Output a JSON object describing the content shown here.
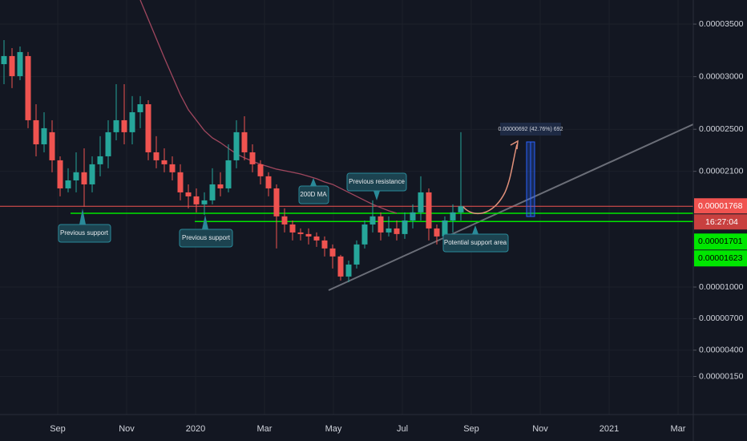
{
  "chart_data": {
    "type": "candlestick",
    "ylim": [
      -2.12e-06,
      3.729e-05
    ],
    "yticks": [
      {
        "value": 3.5e-05,
        "label": "0.00003500"
      },
      {
        "value": 3e-05,
        "label": "0.00003000"
      },
      {
        "value": 2.5e-05,
        "label": "0.00002500"
      },
      {
        "value": 2.1e-05,
        "label": "0.00002100"
      },
      {
        "value": 1e-05,
        "label": "0.00001000"
      },
      {
        "value": 7e-06,
        "label": "0.00000700"
      },
      {
        "value": 4e-06,
        "label": "0.00000400"
      },
      {
        "value": 1.5e-06,
        "label": "0.00000150"
      }
    ],
    "xticks": [
      "Sep",
      "Nov",
      "2020",
      "Mar",
      "May",
      "Jul",
      "Sep",
      "Nov",
      "2021",
      "Mar"
    ],
    "up_color": "#26a69a",
    "down_color": "#ef5350",
    "ma_color": "#a0475e",
    "level_color": "#00e600",
    "price_color": "#f05350",
    "ohlc": [
      [
        3.119e-05,
        3.348e-05,
        2.929e-05,
        3.196e-05
      ],
      [
        3.196e-05,
        3.272e-05,
        2.891e-05,
        3.005e-05
      ],
      [
        3.005e-05,
        3.287e-05,
        2.967e-05,
        3.234e-05
      ],
      [
        3.196e-05,
        3.234e-05,
        2.51e-05,
        2.586e-05
      ],
      [
        2.586e-05,
        2.738e-05,
        2.243e-05,
        2.357e-05
      ],
      [
        2.357e-05,
        2.662e-05,
        2.281e-05,
        2.51e-05
      ],
      [
        2.472e-05,
        2.586e-05,
        2.091e-05,
        2.205e-05
      ],
      [
        2.205e-05,
        2.243e-05,
        1.862e-05,
        1.938e-05
      ],
      [
        1.938e-05,
        2.129e-05,
        1.9e-05,
        2.014e-05
      ],
      [
        2.014e-05,
        2.281e-05,
        1.9e-05,
        2.091e-05
      ],
      [
        2.091e-05,
        2.319e-05,
        1.763e-05,
        1.976e-05
      ],
      [
        1.976e-05,
        2.243e-05,
        1.9e-05,
        2.167e-05
      ],
      [
        2.167e-05,
        2.434e-05,
        2.053e-05,
        2.243e-05
      ],
      [
        2.243e-05,
        2.586e-05,
        2.129e-05,
        2.472e-05
      ],
      [
        2.472e-05,
        2.929e-05,
        2.395e-05,
        2.586e-05
      ],
      [
        2.586e-05,
        2.929e-05,
        2.357e-05,
        2.472e-05
      ],
      [
        2.472e-05,
        2.815e-05,
        2.357e-05,
        2.662e-05
      ],
      [
        2.662e-05,
        2.815e-05,
        2.51e-05,
        2.738e-05
      ],
      [
        2.738e-05,
        2.776e-05,
        2.205e-05,
        2.281e-05
      ],
      [
        2.281e-05,
        2.434e-05,
        2.129e-05,
        2.205e-05
      ],
      [
        2.205e-05,
        2.319e-05,
        2.091e-05,
        2.167e-05
      ],
      [
        2.167e-05,
        2.243e-05,
        2.014e-05,
        2.091e-05
      ],
      [
        2.091e-05,
        2.167e-05,
        1.824e-05,
        1.9e-05
      ],
      [
        1.9e-05,
        1.976e-05,
        1.748e-05,
        1.862e-05
      ],
      [
        1.862e-05,
        1.938e-05,
        1.71e-05,
        1.786e-05
      ],
      [
        1.786e-05,
        1.9e-05,
        1.687e-05,
        1.824e-05
      ],
      [
        1.824e-05,
        2.129e-05,
        1.786e-05,
        1.976e-05
      ],
      [
        1.976e-05,
        2.091e-05,
        1.862e-05,
        1.938e-05
      ],
      [
        1.938e-05,
        2.357e-05,
        1.9e-05,
        2.205e-05
      ],
      [
        2.205e-05,
        2.586e-05,
        2.129e-05,
        2.472e-05
      ],
      [
        2.472e-05,
        2.624e-05,
        2.205e-05,
        2.281e-05
      ],
      [
        2.281e-05,
        2.357e-05,
        2.091e-05,
        2.167e-05
      ],
      [
        2.167e-05,
        2.205e-05,
        1.976e-05,
        2.053e-05
      ],
      [
        2.053e-05,
        2.091e-05,
        1.862e-05,
        1.938e-05
      ],
      [
        1.938e-05,
        1.976e-05,
        1.367e-05,
        1.672e-05
      ],
      [
        1.672e-05,
        1.748e-05,
        1.519e-05,
        1.595e-05
      ],
      [
        1.595e-05,
        1.633e-05,
        1.443e-05,
        1.519e-05
      ],
      [
        1.519e-05,
        1.557e-05,
        1.443e-05,
        1.504e-05
      ],
      [
        1.504e-05,
        1.557e-05,
        1.405e-05,
        1.481e-05
      ],
      [
        1.481e-05,
        1.519e-05,
        1.382e-05,
        1.443e-05
      ],
      [
        1.443e-05,
        1.481e-05,
        1.291e-05,
        1.367e-05
      ],
      [
        1.367e-05,
        1.405e-05,
        1.176e-05,
        1.291e-05
      ],
      [
        1.291e-05,
        1.306e-05,
        1.062e-05,
        1.1e-05
      ],
      [
        1.1e-05,
        1.252e-05,
        1.047e-05,
        1.214e-05
      ],
      [
        1.214e-05,
        1.443e-05,
        1.176e-05,
        1.405e-05
      ],
      [
        1.405e-05,
        1.633e-05,
        1.367e-05,
        1.595e-05
      ],
      [
        1.595e-05,
        1.824e-05,
        1.519e-05,
        1.672e-05
      ],
      [
        1.672e-05,
        1.71e-05,
        1.443e-05,
        1.519e-05
      ],
      [
        1.519e-05,
        1.672e-05,
        1.481e-05,
        1.557e-05
      ],
      [
        1.557e-05,
        1.633e-05,
        1.443e-05,
        1.504e-05
      ],
      [
        1.504e-05,
        1.71e-05,
        1.458e-05,
        1.633e-05
      ],
      [
        1.633e-05,
        1.786e-05,
        1.557e-05,
        1.71e-05
      ],
      [
        1.71e-05,
        2.053e-05,
        1.633e-05,
        1.9e-05
      ],
      [
        1.9e-05,
        1.938e-05,
        1.443e-05,
        1.557e-05
      ],
      [
        1.557e-05,
        1.595e-05,
        1.405e-05,
        1.481e-05
      ],
      [
        1.481e-05,
        1.672e-05,
        1.443e-05,
        1.633e-05
      ],
      [
        1.633e-05,
        1.786e-05,
        1.519e-05,
        1.71e-05
      ],
      [
        1.71e-05,
        2.472e-05,
        1.633e-05,
        1.768e-05
      ]
    ],
    "ma": [
      null,
      null,
      null,
      null,
      null,
      null,
      null,
      null,
      null,
      null,
      null,
      null,
      null,
      null,
      null,
      null,
      null,
      3.729e-05,
      3.546e-05,
      3.363e-05,
      3.18e-05,
      3.005e-05,
      2.83e-05,
      2.685e-05,
      2.586e-05,
      2.487e-05,
      2.418e-05,
      2.373e-05,
      2.319e-05,
      2.266e-05,
      2.228e-05,
      2.197e-05,
      2.167e-05,
      2.144e-05,
      2.121e-05,
      2.106e-05,
      2.091e-05,
      2.075e-05,
      2.053e-05,
      2.03e-05,
      1.999e-05,
      1.976e-05,
      1.938e-05,
      1.9e-05,
      1.862e-05,
      1.824e-05,
      1.786e-05,
      1.755e-05,
      1.725e-05,
      1.702e-05,
      null,
      null,
      null,
      null,
      null,
      null,
      null,
      null
    ],
    "current_price": 1.768e-05,
    "countdown": "16:27:04",
    "levels": [
      1.701e-05,
      1.623e-05
    ],
    "measure_label": "0.00000692 (42.76%) 692",
    "annotations": [
      "Previous support",
      "Previous support",
      "200D MA",
      "Previous resistance",
      "Potential support area"
    ]
  }
}
